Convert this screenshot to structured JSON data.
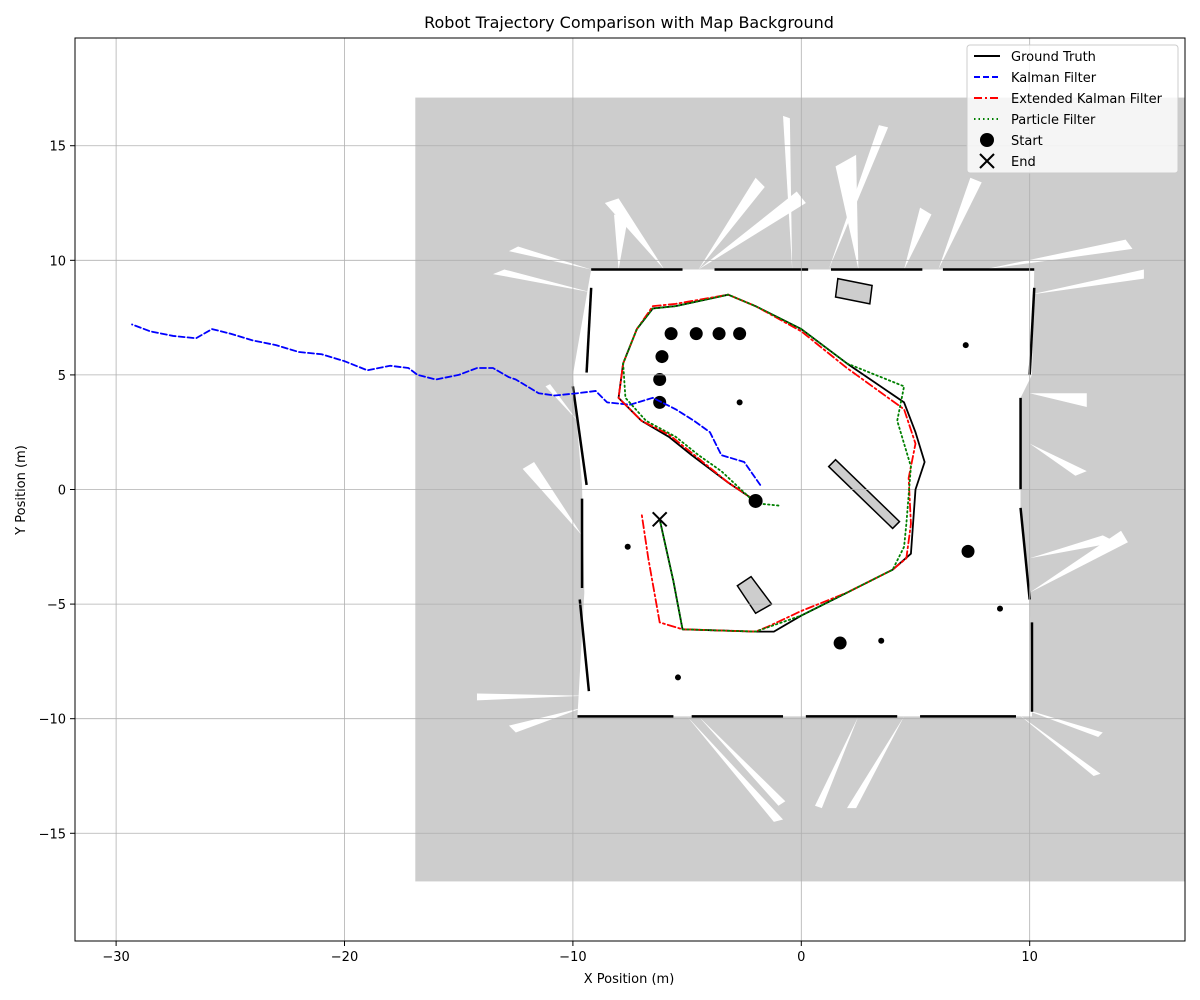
{
  "chart_data": {
    "type": "line",
    "title": "Robot Trajectory Comparison with Map Background",
    "xlabel": "X Position (m)",
    "ylabel": "Y Position (m)",
    "xlim": [
      -31.8,
      16.8
    ],
    "ylim": [
      -19.7,
      19.7
    ],
    "xticks": [
      -30,
      -20,
      -10,
      0,
      10
    ],
    "yticks": [
      -15,
      -10,
      -5,
      0,
      5,
      10,
      15
    ],
    "grid": true,
    "legend_position": "top-right",
    "background": "occupancy grid map",
    "series": [
      {
        "name": "Ground Truth",
        "color": "#000000",
        "style": "solid",
        "x": [
          -2.0,
          -3.2,
          -4.8,
          -5.8,
          -7.0,
          -8.0,
          -7.8,
          -7.2,
          -6.5,
          -5.5,
          -3.2,
          -2.0,
          0.0,
          2.0,
          4.5,
          5.0,
          5.4,
          5.0,
          4.8,
          4.0,
          2.0,
          0.0,
          -1.2,
          -2.0,
          -5.2,
          -5.6,
          -6.2
        ],
        "y": [
          -0.5,
          0.3,
          1.5,
          2.3,
          3.0,
          4.0,
          5.5,
          7.0,
          7.9,
          8.0,
          8.5,
          8.0,
          7.0,
          5.5,
          3.8,
          2.5,
          1.2,
          0.0,
          -2.8,
          -3.5,
          -4.5,
          -5.5,
          -6.2,
          -6.2,
          -6.1,
          -4.0,
          -1.3
        ]
      },
      {
        "name": "Kalman Filter",
        "color": "#0000ff",
        "style": "dashed",
        "x": [
          -1.8,
          -2.5,
          -3.5,
          -4.0,
          -4.7,
          -5.5,
          -6.5,
          -7.5,
          -8.5,
          -9.0,
          -9.8,
          -10.8,
          -11.5,
          -12.5,
          -12.8,
          -13.5,
          -14.2,
          -15.0,
          -16.0,
          -16.8,
          -17.2,
          -18.0,
          -19.0,
          -20.0,
          -21.0,
          -22.0,
          -23.0,
          -24.0,
          -25.0,
          -25.8,
          -26.5,
          -27.5,
          -28.5,
          -29.3
        ],
        "y": [
          0.2,
          1.2,
          1.5,
          2.5,
          3.0,
          3.5,
          4.0,
          3.7,
          3.8,
          4.3,
          4.2,
          4.1,
          4.2,
          4.8,
          4.9,
          5.3,
          5.3,
          5.0,
          4.8,
          5.0,
          5.3,
          5.4,
          5.2,
          5.6,
          5.9,
          6.0,
          6.3,
          6.5,
          6.8,
          7.0,
          6.6,
          6.7,
          6.9,
          7.2
        ]
      },
      {
        "name": "Extended Kalman Filter",
        "color": "#ff0000",
        "style": "dashdot",
        "x": [
          -2.0,
          -3.2,
          -4.8,
          -5.8,
          -7.0,
          -8.0,
          -7.8,
          -7.2,
          -6.5,
          -5.5,
          -3.2,
          -2.0,
          0.0,
          2.0,
          4.5,
          5.0,
          4.7,
          4.8,
          4.6,
          4.0,
          2.0,
          0.0,
          -1.5,
          -2.0,
          -5.2,
          -6.2,
          -6.7,
          -7.0
        ],
        "y": [
          -0.5,
          0.3,
          1.6,
          2.4,
          3.0,
          4.0,
          5.5,
          7.0,
          8.0,
          8.1,
          8.5,
          8.0,
          6.9,
          5.3,
          3.5,
          2.0,
          0.5,
          -1.5,
          -3.0,
          -3.5,
          -4.5,
          -5.3,
          -6.0,
          -6.2,
          -6.1,
          -5.8,
          -3.0,
          -1.0
        ]
      },
      {
        "name": "Particle Filter",
        "color": "#008000",
        "style": "dotted",
        "x": [
          -1.0,
          -2.0,
          -3.5,
          -4.5,
          -5.5,
          -6.8,
          -7.7,
          -7.8,
          -7.2,
          -6.5,
          -5.5,
          -3.2,
          -2.0,
          0.0,
          2.0,
          4.5,
          4.2,
          4.5,
          4.8,
          4.6,
          4.5,
          4.0,
          2.0,
          0.0,
          -2.0,
          -5.2,
          -5.6,
          -6.2
        ],
        "y": [
          -0.7,
          -0.6,
          0.8,
          1.5,
          2.3,
          3.0,
          4.0,
          5.5,
          7.0,
          7.9,
          8.0,
          8.5,
          8.0,
          7.0,
          5.5,
          4.5,
          3.0,
          2.0,
          1.0,
          -1.5,
          -2.5,
          -3.5,
          -4.5,
          -5.5,
          -6.2,
          -6.1,
          -4.0,
          -1.3
        ]
      }
    ],
    "markers": [
      {
        "name": "Start",
        "symbol": "circle",
        "x": -2.0,
        "y": -0.5,
        "color": "#000000"
      },
      {
        "name": "End",
        "symbol": "x",
        "x": -6.2,
        "y": -1.3,
        "color": "#000000"
      }
    ]
  },
  "colors": {
    "map_unknown": "#cdcdcd",
    "map_free": "#ffffff",
    "map_occupied": "#000000",
    "grid": "#b0b0b0"
  }
}
